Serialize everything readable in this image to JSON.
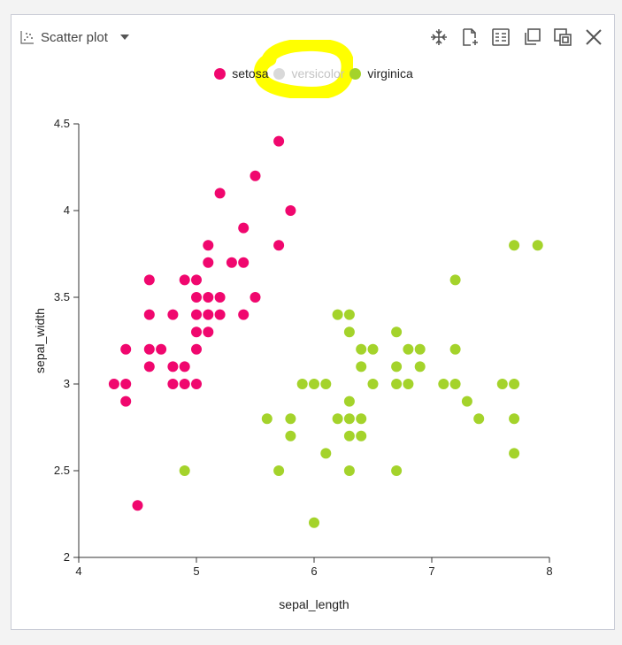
{
  "panel": {
    "title": "Scatter plot",
    "toolbar": [
      {
        "name": "zoom-fit-icon"
      },
      {
        "name": "new-document-icon"
      },
      {
        "name": "table-view-icon"
      },
      {
        "name": "duplicate-icon"
      },
      {
        "name": "pop-out-icon"
      },
      {
        "name": "close-icon"
      }
    ]
  },
  "legend": [
    {
      "name": "setosa",
      "color": "#f0076e",
      "enabled": true
    },
    {
      "name": "versicolor",
      "color": "#d9d9d9",
      "enabled": false
    },
    {
      "name": "virginica",
      "color": "#a4d32b",
      "enabled": true
    }
  ],
  "colors": {
    "setosa": "#f0076e",
    "virginica": "#a4d32b",
    "highlight": "#ffff00"
  },
  "chart_data": {
    "type": "scatter",
    "xlabel": "sepal_length",
    "ylabel": "sepal_width",
    "xlim": [
      4,
      8
    ],
    "ylim": [
      2,
      4.5
    ],
    "xticks": [
      "4",
      "5",
      "6",
      "7",
      "8"
    ],
    "yticks": [
      "2",
      "2.5",
      "3",
      "3.5",
      "4",
      "4.5"
    ],
    "grid": false,
    "legend_position": "top-center",
    "series": [
      {
        "name": "setosa",
        "points": [
          [
            4.3,
            3.0
          ],
          [
            4.4,
            2.9
          ],
          [
            4.4,
            3.0
          ],
          [
            4.4,
            3.2
          ],
          [
            4.5,
            2.3
          ],
          [
            4.6,
            3.1
          ],
          [
            4.6,
            3.2
          ],
          [
            4.6,
            3.4
          ],
          [
            4.6,
            3.6
          ],
          [
            4.7,
            3.2
          ],
          [
            4.8,
            3.0
          ],
          [
            4.8,
            3.1
          ],
          [
            4.8,
            3.4
          ],
          [
            4.9,
            3.0
          ],
          [
            4.9,
            3.1
          ],
          [
            4.9,
            3.6
          ],
          [
            5.0,
            3.0
          ],
          [
            5.0,
            3.2
          ],
          [
            5.0,
            3.3
          ],
          [
            5.0,
            3.4
          ],
          [
            5.0,
            3.5
          ],
          [
            5.0,
            3.6
          ],
          [
            5.1,
            3.3
          ],
          [
            5.1,
            3.4
          ],
          [
            5.1,
            3.5
          ],
          [
            5.1,
            3.7
          ],
          [
            5.1,
            3.8
          ],
          [
            5.2,
            3.4
          ],
          [
            5.2,
            3.5
          ],
          [
            5.2,
            4.1
          ],
          [
            5.3,
            3.7
          ],
          [
            5.4,
            3.4
          ],
          [
            5.4,
            3.7
          ],
          [
            5.4,
            3.9
          ],
          [
            5.5,
            3.5
          ],
          [
            5.5,
            4.2
          ],
          [
            5.7,
            3.8
          ],
          [
            5.7,
            4.4
          ],
          [
            5.8,
            4.0
          ]
        ]
      },
      {
        "name": "virginica",
        "points": [
          [
            4.9,
            2.5
          ],
          [
            5.6,
            2.8
          ],
          [
            5.7,
            2.5
          ],
          [
            5.8,
            2.7
          ],
          [
            5.8,
            2.8
          ],
          [
            5.9,
            3.0
          ],
          [
            6.0,
            2.2
          ],
          [
            6.0,
            3.0
          ],
          [
            6.1,
            2.6
          ],
          [
            6.1,
            3.0
          ],
          [
            6.2,
            2.8
          ],
          [
            6.2,
            3.4
          ],
          [
            6.3,
            2.5
          ],
          [
            6.3,
            2.7
          ],
          [
            6.3,
            2.8
          ],
          [
            6.3,
            2.9
          ],
          [
            6.3,
            3.3
          ],
          [
            6.3,
            3.4
          ],
          [
            6.4,
            2.7
          ],
          [
            6.4,
            2.8
          ],
          [
            6.4,
            3.1
          ],
          [
            6.4,
            3.2
          ],
          [
            6.5,
            3.0
          ],
          [
            6.5,
            3.2
          ],
          [
            6.7,
            2.5
          ],
          [
            6.7,
            3.0
          ],
          [
            6.7,
            3.1
          ],
          [
            6.7,
            3.3
          ],
          [
            6.8,
            3.0
          ],
          [
            6.8,
            3.2
          ],
          [
            6.9,
            3.1
          ],
          [
            6.9,
            3.2
          ],
          [
            7.1,
            3.0
          ],
          [
            7.2,
            3.0
          ],
          [
            7.2,
            3.2
          ],
          [
            7.2,
            3.6
          ],
          [
            7.3,
            2.9
          ],
          [
            7.4,
            2.8
          ],
          [
            7.6,
            3.0
          ],
          [
            7.7,
            2.6
          ],
          [
            7.7,
            2.8
          ],
          [
            7.7,
            3.0
          ],
          [
            7.7,
            3.8
          ],
          [
            7.9,
            3.8
          ]
        ]
      }
    ]
  }
}
